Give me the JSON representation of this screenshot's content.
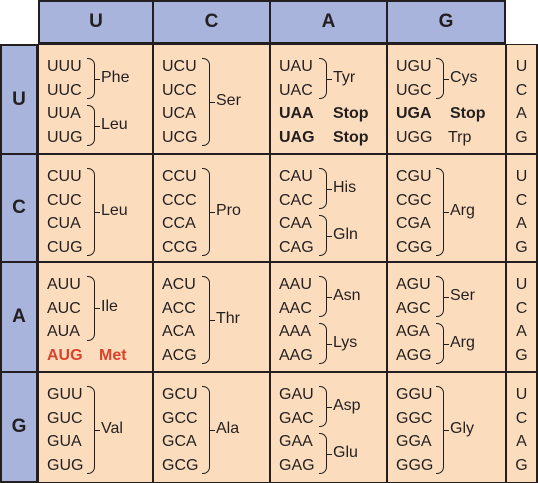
{
  "column_headers": [
    "U",
    "C",
    "A",
    "G"
  ],
  "row_headers": [
    "U",
    "C",
    "A",
    "G"
  ],
  "third_bases": [
    "U",
    "C",
    "A",
    "G"
  ],
  "rows": [
    {
      "cells": [
        {
          "codons": [
            "UUU",
            "UUC",
            "UUA",
            "UUG"
          ],
          "groups": [
            {
              "from": 0,
              "to": 1,
              "aa": "Phe"
            },
            {
              "from": 2,
              "to": 3,
              "aa": "Leu"
            }
          ]
        },
        {
          "codons": [
            "UCU",
            "UCC",
            "UCA",
            "UCG"
          ],
          "groups": [
            {
              "from": 0,
              "to": 3,
              "aa": "Ser"
            }
          ]
        },
        {
          "codons": [
            "UAU",
            "UAC",
            "UAA",
            "UAG"
          ],
          "groups": [
            {
              "from": 0,
              "to": 1,
              "aa": "Tyr"
            }
          ],
          "singles": [
            {
              "index": 2,
              "aa": "Stop",
              "style": "bold"
            },
            {
              "index": 3,
              "aa": "Stop",
              "style": "bold"
            }
          ]
        },
        {
          "codons": [
            "UGU",
            "UGC",
            "UGA",
            "UGG"
          ],
          "groups": [
            {
              "from": 0,
              "to": 1,
              "aa": "Cys"
            }
          ],
          "singles": [
            {
              "index": 2,
              "aa": "Stop",
              "style": "bold"
            },
            {
              "index": 3,
              "aa": "Trp",
              "style": "normal"
            }
          ]
        }
      ]
    },
    {
      "cells": [
        {
          "codons": [
            "CUU",
            "CUC",
            "CUA",
            "CUG"
          ],
          "groups": [
            {
              "from": 0,
              "to": 3,
              "aa": "Leu"
            }
          ]
        },
        {
          "codons": [
            "CCU",
            "CCC",
            "CCA",
            "CCG"
          ],
          "groups": [
            {
              "from": 0,
              "to": 3,
              "aa": "Pro"
            }
          ]
        },
        {
          "codons": [
            "CAU",
            "CAC",
            "CAA",
            "CAG"
          ],
          "groups": [
            {
              "from": 0,
              "to": 1,
              "aa": "His"
            },
            {
              "from": 2,
              "to": 3,
              "aa": "Gln"
            }
          ]
        },
        {
          "codons": [
            "CGU",
            "CGC",
            "CGA",
            "CGG"
          ],
          "groups": [
            {
              "from": 0,
              "to": 3,
              "aa": "Arg"
            }
          ]
        }
      ]
    },
    {
      "cells": [
        {
          "codons": [
            "AUU",
            "AUC",
            "AUA",
            "AUG"
          ],
          "groups": [
            {
              "from": 0,
              "to": 2,
              "aa": "Ile"
            }
          ],
          "singles": [
            {
              "index": 3,
              "aa": "Met",
              "style": "start"
            }
          ]
        },
        {
          "codons": [
            "ACU",
            "ACC",
            "ACA",
            "ACG"
          ],
          "groups": [
            {
              "from": 0,
              "to": 3,
              "aa": "Thr"
            }
          ]
        },
        {
          "codons": [
            "AAU",
            "AAC",
            "AAA",
            "AAG"
          ],
          "groups": [
            {
              "from": 0,
              "to": 1,
              "aa": "Asn"
            },
            {
              "from": 2,
              "to": 3,
              "aa": "Lys"
            }
          ]
        },
        {
          "codons": [
            "AGU",
            "AGC",
            "AGA",
            "AGG"
          ],
          "groups": [
            {
              "from": 0,
              "to": 1,
              "aa": "Ser"
            },
            {
              "from": 2,
              "to": 3,
              "aa": "Arg"
            }
          ]
        }
      ]
    },
    {
      "cells": [
        {
          "codons": [
            "GUU",
            "GUC",
            "GUA",
            "GUG"
          ],
          "groups": [
            {
              "from": 0,
              "to": 3,
              "aa": "Val"
            }
          ]
        },
        {
          "codons": [
            "GCU",
            "GCC",
            "GCA",
            "GCG"
          ],
          "groups": [
            {
              "from": 0,
              "to": 3,
              "aa": "Ala"
            }
          ]
        },
        {
          "codons": [
            "GAU",
            "GAC",
            "GAA",
            "GAG"
          ],
          "groups": [
            {
              "from": 0,
              "to": 1,
              "aa": "Asp"
            },
            {
              "from": 2,
              "to": 3,
              "aa": "Glu"
            }
          ]
        },
        {
          "codons": [
            "GGU",
            "GGC",
            "GGA",
            "GGG"
          ],
          "groups": [
            {
              "from": 0,
              "to": 3,
              "aa": "Gly"
            }
          ]
        }
      ]
    }
  ],
  "colors": {
    "header_fill": "#a9b4dc",
    "cell_fill": "#fbdcbd",
    "start_codon": "#d9432c",
    "ink": "#231f20"
  }
}
